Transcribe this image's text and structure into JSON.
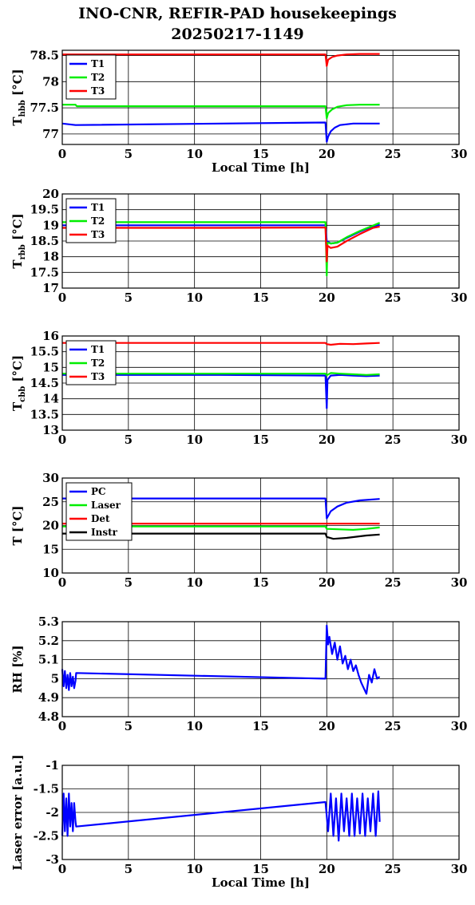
{
  "header": {
    "title_line1": "INO-CNR, REFIR-PAD housekeepings",
    "title_line2": "20250217-1149"
  },
  "chart_data": [
    {
      "type": "line",
      "id": "thbb",
      "ylabel_main": "T",
      "ylabel_sub": "hbb",
      "ylabel_tail": " [°C]",
      "xlabel": "Local Time [h]",
      "xlim": [
        0,
        30
      ],
      "ylim": [
        76.8,
        78.6
      ],
      "xticks": [
        0,
        5,
        10,
        15,
        20,
        25,
        30
      ],
      "yticks": [
        77,
        77.5,
        78,
        78.5
      ],
      "ytick_labels": [
        "77",
        "77.5",
        "78",
        "78.5"
      ],
      "grid": true,
      "legend_position": "top-left",
      "series": [
        {
          "name": "T1",
          "color": "#0000ff",
          "x": [
            0,
            1,
            19.9,
            20,
            20.1,
            20.3,
            20.6,
            21,
            22,
            23,
            24
          ],
          "y": [
            77.2,
            77.17,
            77.22,
            76.85,
            76.95,
            77.05,
            77.12,
            77.17,
            77.2,
            77.2,
            77.2
          ]
        },
        {
          "name": "T2",
          "color": "#00ee00",
          "x": [
            0,
            1,
            1.1,
            19.9,
            20,
            20.1,
            20.4,
            20.8,
            21.5,
            22.5,
            24
          ],
          "y": [
            77.56,
            77.56,
            77.53,
            77.53,
            77.3,
            77.4,
            77.47,
            77.52,
            77.55,
            77.56,
            77.56
          ]
        },
        {
          "name": "T3",
          "color": "#ff0000",
          "x": [
            0,
            1,
            19.9,
            20,
            20.1,
            20.4,
            20.8,
            21.5,
            22.5,
            24
          ],
          "y": [
            78.52,
            78.52,
            78.52,
            78.3,
            78.42,
            78.47,
            78.5,
            78.52,
            78.53,
            78.53
          ]
        }
      ]
    },
    {
      "type": "line",
      "id": "trbb",
      "ylabel_main": "T",
      "ylabel_sub": "rbb",
      "ylabel_tail": " [°C]",
      "xlabel": "",
      "xlim": [
        0,
        30
      ],
      "ylim": [
        17,
        20
      ],
      "xticks": [
        0,
        5,
        10,
        15,
        20,
        25,
        30
      ],
      "yticks": [
        17,
        17.5,
        18,
        18.5,
        19,
        19.5,
        20
      ],
      "ytick_labels": [
        "17",
        "17.5",
        "18",
        "18.5",
        "19",
        "19.5",
        "20"
      ],
      "grid": true,
      "legend_position": "top-left",
      "series": [
        {
          "name": "T1",
          "color": "#0000ff",
          "x": [
            0,
            19.9,
            20,
            20.3,
            20.8,
            21.5,
            22.5,
            23.5,
            24
          ],
          "y": [
            19,
            19,
            18.5,
            18.42,
            18.45,
            18.6,
            18.8,
            18.97,
            19.02
          ]
        },
        {
          "name": "T2",
          "color": "#00ee00",
          "x": [
            0,
            19.9,
            20,
            20.05,
            20.3,
            20.8,
            21.5,
            22.5,
            23.5,
            24
          ],
          "y": [
            19.1,
            19.1,
            17.4,
            18.45,
            18.42,
            18.45,
            18.62,
            18.82,
            18.99,
            19.08
          ]
        },
        {
          "name": "T3",
          "color": "#ff0000",
          "x": [
            0,
            12,
            19.9,
            20,
            20.05,
            20.3,
            20.8,
            21.5,
            22.5,
            23.5,
            24
          ],
          "y": [
            18.92,
            18.92,
            18.93,
            17.85,
            18.35,
            18.28,
            18.32,
            18.5,
            18.72,
            18.92,
            18.96
          ]
        }
      ]
    },
    {
      "type": "line",
      "id": "tcbb",
      "ylabel_main": "T",
      "ylabel_sub": "cbb",
      "ylabel_tail": " [°C]",
      "xlabel": "",
      "xlim": [
        0,
        30
      ],
      "ylim": [
        13,
        16
      ],
      "xticks": [
        0,
        5,
        10,
        15,
        20,
        25,
        30
      ],
      "yticks": [
        13,
        13.5,
        14,
        14.5,
        15,
        15.5,
        16
      ],
      "ytick_labels": [
        "13",
        "13.5",
        "14",
        "14.5",
        "15",
        "15.5",
        "16"
      ],
      "grid": true,
      "legend_position": "top-left",
      "series": [
        {
          "name": "T1",
          "color": "#0000ff",
          "x": [
            0,
            12,
            19.9,
            20,
            20.05,
            20.3,
            21,
            22,
            23,
            24
          ],
          "y": [
            14.76,
            14.76,
            14.74,
            13.7,
            14.6,
            14.74,
            14.76,
            14.74,
            14.72,
            14.74
          ]
        },
        {
          "name": "T2",
          "color": "#00ee00",
          "x": [
            0,
            19.9,
            20,
            20.3,
            21,
            22,
            23,
            24
          ],
          "y": [
            14.8,
            14.8,
            14.75,
            14.82,
            14.8,
            14.78,
            14.76,
            14.78
          ]
        },
        {
          "name": "T3",
          "color": "#ff0000",
          "x": [
            0,
            19.9,
            20,
            20.3,
            21,
            22,
            23,
            24
          ],
          "y": [
            15.78,
            15.78,
            15.74,
            15.72,
            15.75,
            15.74,
            15.76,
            15.78
          ]
        }
      ]
    },
    {
      "type": "line",
      "id": "temps",
      "ylabel_main": "T [°C]",
      "ylabel_sub": "",
      "ylabel_tail": "",
      "xlabel": "",
      "xlim": [
        0,
        30
      ],
      "ylim": [
        10,
        30
      ],
      "xticks": [
        0,
        5,
        10,
        15,
        20,
        25,
        30
      ],
      "yticks": [
        10,
        15,
        20,
        25,
        30
      ],
      "ytick_labels": [
        "10",
        "15",
        "20",
        "25",
        "30"
      ],
      "grid": true,
      "legend_position": "top-left",
      "series": [
        {
          "name": "PC",
          "color": "#0000ff",
          "x": [
            0,
            19.9,
            20,
            20.3,
            20.8,
            21.5,
            22.5,
            24
          ],
          "y": [
            25.7,
            25.7,
            21.5,
            23,
            24,
            24.8,
            25.3,
            25.6
          ]
        },
        {
          "name": "Laser",
          "color": "#00ee00",
          "x": [
            0,
            19.9,
            20,
            21,
            22,
            23,
            24
          ],
          "y": [
            19.8,
            19.8,
            19.3,
            19.2,
            19.1,
            19.3,
            19.6
          ]
        },
        {
          "name": "Det",
          "color": "#ff0000",
          "x": [
            0,
            24
          ],
          "y": [
            20.4,
            20.4
          ]
        },
        {
          "name": "Instr",
          "color": "#000000",
          "x": [
            0,
            19.9,
            20,
            20.5,
            21.5,
            23,
            24
          ],
          "y": [
            18.3,
            18.3,
            17.6,
            17.2,
            17.4,
            17.9,
            18.1
          ]
        }
      ]
    },
    {
      "type": "line",
      "id": "rh",
      "ylabel_main": "RH [%]",
      "ylabel_sub": "",
      "ylabel_tail": "",
      "xlabel": "",
      "xlim": [
        0,
        30
      ],
      "ylim": [
        4.8,
        5.3
      ],
      "xticks": [
        0,
        5,
        10,
        15,
        20,
        25,
        30
      ],
      "yticks": [
        4.8,
        4.9,
        5,
        5.1,
        5.2,
        5.3
      ],
      "ytick_labels": [
        "4.8",
        "4.9",
        "5",
        "5.1",
        "5.2",
        "5.3"
      ],
      "grid": true,
      "legend_position": "none",
      "series": [
        {
          "name": "",
          "color": "#0000ff",
          "x": [
            0,
            0.1,
            0.2,
            0.3,
            0.4,
            0.5,
            0.6,
            0.7,
            0.8,
            0.9,
            1.0,
            1.05,
            19.9,
            20.0,
            20.1,
            20.2,
            20.4,
            20.6,
            20.8,
            21.0,
            21.2,
            21.4,
            21.6,
            21.8,
            22.0,
            22.2,
            22.4,
            22.6,
            22.8,
            23.0,
            23.2,
            23.4,
            23.6,
            23.8,
            24.0
          ],
          "y": [
            5.05,
            4.96,
            5.04,
            4.95,
            5.02,
            4.94,
            5.03,
            4.96,
            5.01,
            4.95,
            4.99,
            5.03,
            5.0,
            5.28,
            5.18,
            5.22,
            5.13,
            5.19,
            5.1,
            5.17,
            5.08,
            5.12,
            5.05,
            5.1,
            5.04,
            5.07,
            5.02,
            4.98,
            4.95,
            4.92,
            5.02,
            4.98,
            5.05,
            5.0,
            5.01
          ]
        }
      ]
    },
    {
      "type": "line",
      "id": "laser",
      "ylabel_main": "Laser error [a.u.]",
      "ylabel_sub": "",
      "ylabel_tail": "",
      "xlabel": "Local Time [h]",
      "xlim": [
        0,
        30
      ],
      "ylim": [
        -3,
        -1
      ],
      "xticks": [
        0,
        5,
        10,
        15,
        20,
        25,
        30
      ],
      "yticks": [
        -3,
        -2.5,
        -2,
        -1.5,
        -1
      ],
      "ytick_labels": [
        "-3",
        "-2.5",
        "-2",
        "-1.5",
        "-1"
      ],
      "grid": true,
      "legend_position": "none",
      "series": [
        {
          "name": "",
          "color": "#0000ff",
          "x": [
            0,
            0.1,
            0.2,
            0.3,
            0.4,
            0.5,
            0.6,
            0.7,
            0.8,
            0.9,
            1.0,
            1.05,
            19.9,
            20.1,
            20.3,
            20.5,
            20.7,
            20.9,
            21.1,
            21.3,
            21.5,
            21.7,
            21.9,
            22.1,
            22.3,
            22.5,
            22.7,
            22.9,
            23.1,
            23.3,
            23.5,
            23.7,
            23.9,
            24.0
          ],
          "y": [
            -2.5,
            -1.6,
            -2.4,
            -1.7,
            -2.5,
            -1.6,
            -2.3,
            -1.8,
            -2.4,
            -1.8,
            -2.2,
            -2.3,
            -1.78,
            -2.4,
            -1.6,
            -2.5,
            -1.7,
            -2.6,
            -1.6,
            -2.4,
            -1.7,
            -2.5,
            -1.6,
            -2.5,
            -1.7,
            -2.45,
            -1.6,
            -2.5,
            -1.7,
            -2.4,
            -1.6,
            -2.5,
            -1.55,
            -2.2
          ]
        }
      ]
    }
  ]
}
